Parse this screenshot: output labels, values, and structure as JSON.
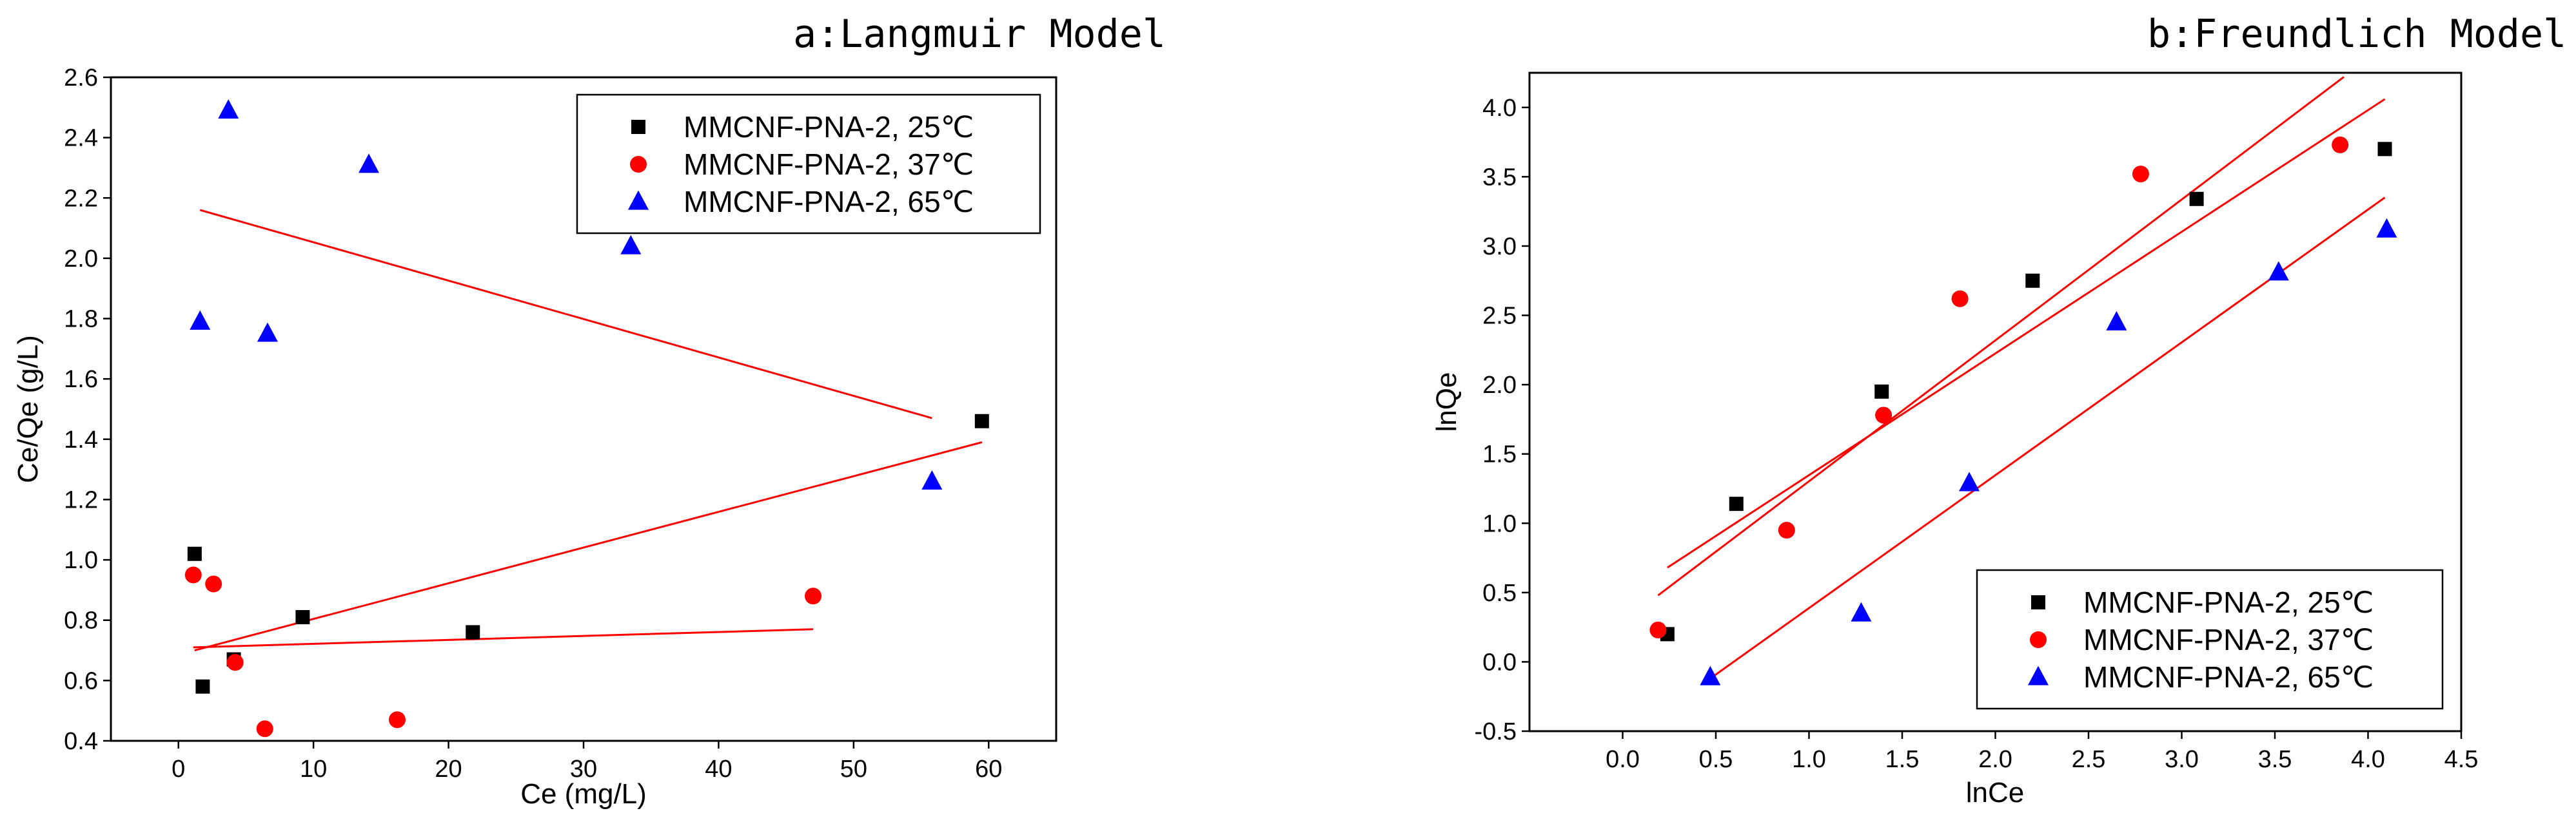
{
  "chart_data": [
    {
      "id": "a",
      "type": "scatter",
      "title": "a:Langmuir Model",
      "xlabel": "Ce (mg/L)",
      "ylabel": "Ce/Qe (g/L)",
      "xlim": [
        -5,
        65
      ],
      "ylim": [
        0.4,
        2.6
      ],
      "xticks": [
        0,
        10,
        20,
        30,
        40,
        50,
        60
      ],
      "yticks": [
        0.4,
        0.6,
        0.8,
        1.0,
        1.2,
        1.4,
        1.6,
        1.8,
        2.0,
        2.2,
        2.4,
        2.6
      ],
      "ytick_decimals": 1,
      "legend_position": "top-right",
      "series": [
        {
          "name": "MMCNF-PNA-2, 25℃",
          "marker": "square",
          "color": "#000000",
          "x": [
            1.2,
            1.8,
            4.1,
            9.2,
            21.8,
            59.5
          ],
          "y": [
            1.02,
            0.58,
            0.67,
            0.81,
            0.76,
            1.46
          ]
        },
        {
          "name": "MMCNF-PNA-2, 37℃",
          "marker": "circle",
          "color": "#ff0000",
          "x": [
            1.1,
            2.6,
            4.2,
            6.4,
            16.2,
            47.0
          ],
          "y": [
            0.95,
            0.92,
            0.66,
            0.44,
            0.47,
            0.88
          ]
        },
        {
          "name": "MMCNF-PNA-2, 65℃",
          "marker": "triangle",
          "color": "#0000ff",
          "x": [
            1.6,
            3.7,
            6.6,
            14.1,
            33.5,
            55.8
          ],
          "y": [
            1.79,
            2.49,
            1.75,
            2.31,
            2.04,
            1.26
          ]
        }
      ],
      "fit_lines": [
        {
          "color": "#ff0000",
          "x": [
            1.2,
            59.5
          ],
          "y": [
            0.7,
            1.39
          ]
        },
        {
          "color": "#ff0000",
          "x": [
            1.1,
            47.0
          ],
          "y": [
            0.71,
            0.77
          ]
        },
        {
          "color": "#ff0000",
          "x": [
            1.6,
            55.8
          ],
          "y": [
            2.16,
            1.47
          ]
        }
      ]
    },
    {
      "id": "b",
      "type": "scatter",
      "title": "b:Freundlich Model",
      "xlabel": "lnCe",
      "ylabel": "lnQe",
      "xlim": [
        -0.5,
        4.5
      ],
      "ylim": [
        -0.5,
        4.25
      ],
      "xticks": [
        0.0,
        0.5,
        1.0,
        1.5,
        2.0,
        2.5,
        3.0,
        3.5,
        4.0,
        4.5
      ],
      "yticks": [
        -0.5,
        0.0,
        0.5,
        1.0,
        1.5,
        2.0,
        2.5,
        3.0,
        3.5,
        4.0
      ],
      "ytick_decimals": 1,
      "legend_position": "bottom-right",
      "series": [
        {
          "name": "MMCNF-PNA-2, 25℃",
          "marker": "square",
          "color": "#000000",
          "x": [
            0.24,
            0.61,
            1.39,
            2.2,
            3.08,
            4.09
          ],
          "y": [
            0.2,
            1.14,
            1.95,
            2.75,
            3.34,
            3.7
          ]
        },
        {
          "name": "MMCNF-PNA-2, 37℃",
          "marker": "circle",
          "color": "#ff0000",
          "x": [
            0.19,
            0.88,
            1.4,
            1.81,
            2.78,
            3.85
          ],
          "y": [
            0.23,
            0.95,
            1.78,
            2.62,
            3.52,
            3.73
          ]
        },
        {
          "name": "MMCNF-PNA-2, 65℃",
          "marker": "triangle",
          "color": "#0000ff",
          "x": [
            0.47,
            1.28,
            1.86,
            2.65,
            3.52,
            4.1
          ],
          "y": [
            -0.11,
            0.35,
            1.29,
            2.45,
            2.81,
            3.12
          ]
        }
      ],
      "fit_lines": [
        {
          "color": "#ff0000",
          "x": [
            0.24,
            4.09
          ],
          "y": [
            0.68,
            4.06
          ]
        },
        {
          "color": "#ff0000",
          "x": [
            0.19,
            3.87
          ],
          "y": [
            0.48,
            4.22
          ]
        },
        {
          "color": "#ff0000",
          "x": [
            0.47,
            4.09
          ],
          "y": [
            -0.12,
            3.35
          ]
        }
      ]
    }
  ]
}
